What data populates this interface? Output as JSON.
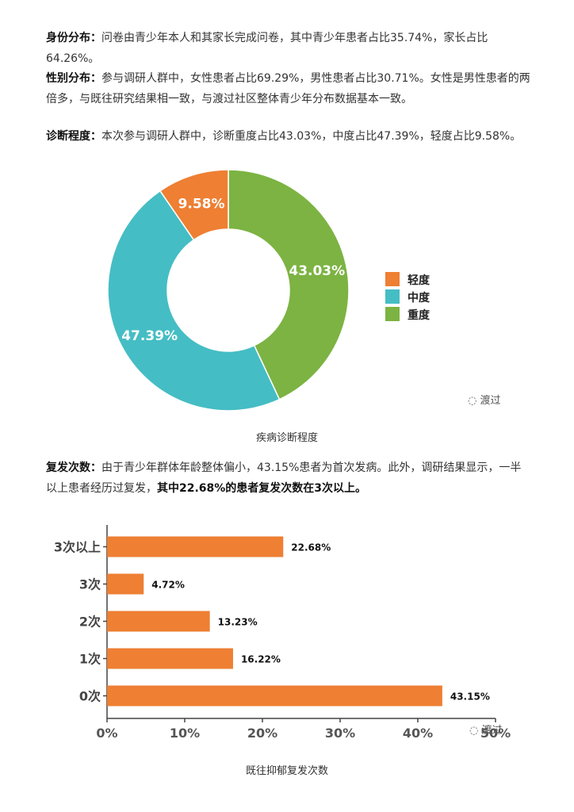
{
  "paragraphs": {
    "identity": {
      "label": "身份分布：",
      "text": "问卷由青少年本人和其家长完成问卷，其中青少年患者占比35.74%，家长占比64.26%。"
    },
    "gender": {
      "label": "性别分布：",
      "text": "参与调研人群中，女性患者占比69.29%，男性患者占比30.71%。女性是男性患者的两倍多，与既往研究结果相一致，与渡过社区整体青少年分布数据基本一致。"
    },
    "diagnosis": {
      "label": "诊断程度：",
      "text": "本次参与调研人群中，诊断重度占比43.03%，中度占比47.39%，轻度占比9.58%。"
    },
    "relapse": {
      "label": "复发次数：",
      "text": "由于青少年群体年龄整体偏小，43.15%患者为首次发病。此外，调研结果显示，一半以上患者经历过复发，",
      "bold_text": "其中22.68%的患者复发次数在3次以上。"
    }
  },
  "watermark": "渡过",
  "chart_data": [
    {
      "type": "pie",
      "variant": "donut",
      "caption": "疾病诊断程度",
      "slices": [
        {
          "name": "重度",
          "value": 43.03,
          "label": "43.03%",
          "color": "#7cb342"
        },
        {
          "name": "中度",
          "value": 47.39,
          "label": "47.39%",
          "color": "#45bdc4"
        },
        {
          "name": "轻度",
          "value": 9.58,
          "label": "9.58%",
          "color": "#ee7f33"
        }
      ],
      "legend": [
        {
          "name": "轻度",
          "color": "#ee7f33"
        },
        {
          "name": "中度",
          "color": "#45bdc4"
        },
        {
          "name": "重度",
          "color": "#7cb342"
        }
      ],
      "legend_position": "right"
    },
    {
      "type": "bar",
      "orientation": "horizontal",
      "caption": "既往抑郁复发次数",
      "categories": [
        "3次以上",
        "3次",
        "2次",
        "1次",
        "0次"
      ],
      "values": [
        22.68,
        4.72,
        13.23,
        16.22,
        43.15
      ],
      "labels": [
        "22.68%",
        "4.72%",
        "13.23%",
        "16.22%",
        "43.15%"
      ],
      "xlim": [
        0,
        50
      ],
      "xticks": [
        "0%",
        "10%",
        "20%",
        "30%",
        "40%",
        "50%"
      ],
      "color": "#ee7f33",
      "grid": false
    }
  ]
}
